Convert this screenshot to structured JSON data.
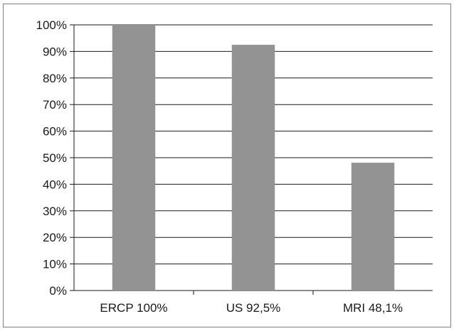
{
  "chart_data": {
    "type": "bar",
    "categories": [
      "ERCP 100%",
      "US 92,5%",
      "MRI 48,1%"
    ],
    "values": [
      100,
      92.5,
      48.1
    ],
    "title": "",
    "xlabel": "",
    "ylabel": "",
    "ylim": [
      0,
      100
    ],
    "yticks": [
      "0%",
      "10%",
      "20%",
      "30%",
      "40%",
      "50%",
      "60%",
      "70%",
      "80%",
      "90%",
      "100%"
    ],
    "grid": true,
    "legend": "none",
    "bar_color": "#939393",
    "grid_color": "#1a1a1a"
  }
}
